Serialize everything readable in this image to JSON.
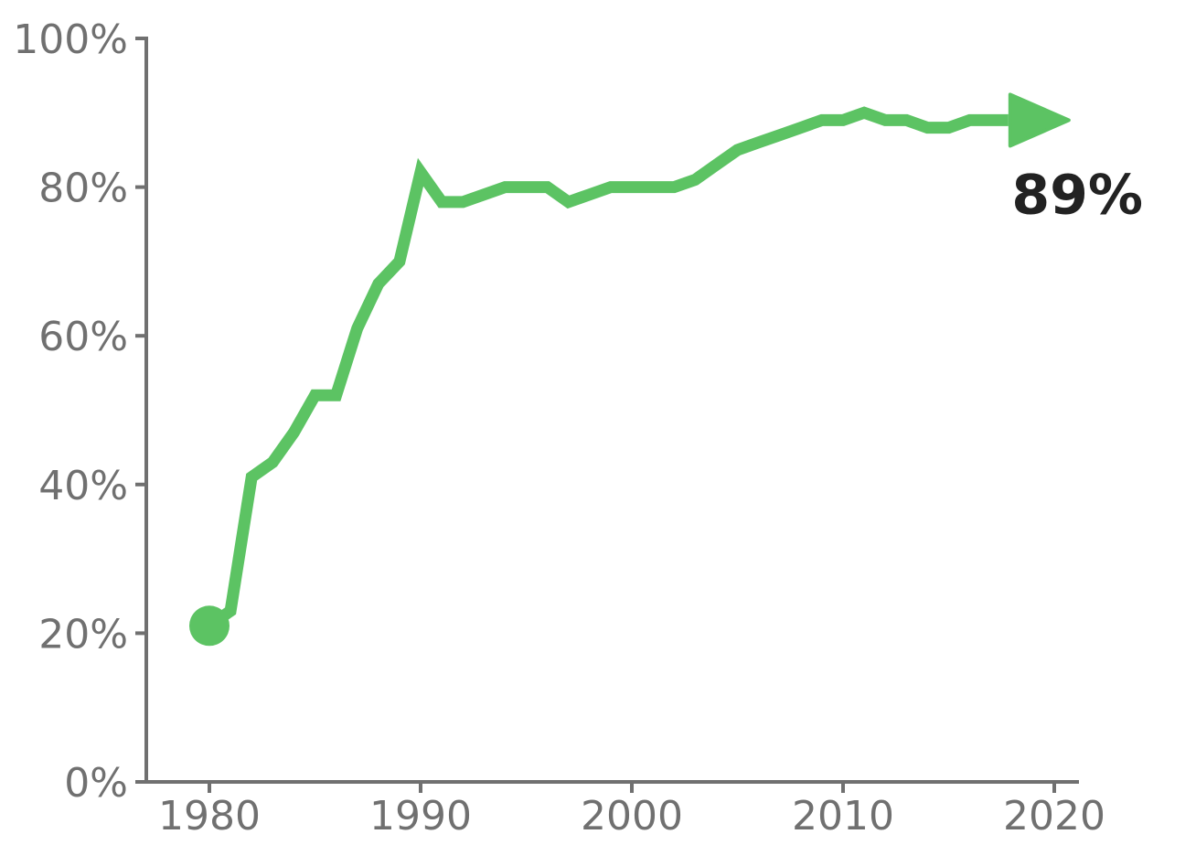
{
  "chart_data": {
    "type": "line",
    "title": "",
    "xlabel": "",
    "ylabel": "",
    "xlim": [
      1977,
      2021
    ],
    "ylim": [
      0,
      100
    ],
    "x_ticks": [
      1980,
      1990,
      2000,
      2010,
      2020
    ],
    "x_tick_labels": [
      "1980",
      "1990",
      "2000",
      "2010",
      "2020"
    ],
    "y_ticks": [
      0,
      20,
      40,
      60,
      80,
      100
    ],
    "y_tick_labels": [
      "0%",
      "20%",
      "40%",
      "60%",
      "80%",
      "100%"
    ],
    "grid": false,
    "line_color": "#5CC363",
    "series": [
      {
        "x": [
          1980,
          1981,
          1982,
          1983,
          1984,
          1985,
          1986,
          1987,
          1988,
          1989,
          1990,
          1991,
          1992,
          1993,
          1994,
          1995,
          1996,
          1997,
          1998,
          1999,
          2000,
          2001,
          2002,
          2003,
          2004,
          2005,
          2006,
          2007,
          2008,
          2009,
          2010,
          2011,
          2012,
          2013,
          2014,
          2015,
          2016,
          2017,
          2018
        ],
        "values": [
          21,
          23,
          41,
          43,
          47,
          52,
          52,
          61,
          67,
          70,
          82,
          78,
          78,
          79,
          80,
          80,
          80,
          78,
          79,
          80,
          80,
          80,
          80,
          81,
          83,
          85,
          86,
          87,
          88,
          89,
          89,
          90,
          89,
          89,
          88,
          88,
          89,
          89,
          89
        ]
      }
    ],
    "end_label": "89%"
  }
}
